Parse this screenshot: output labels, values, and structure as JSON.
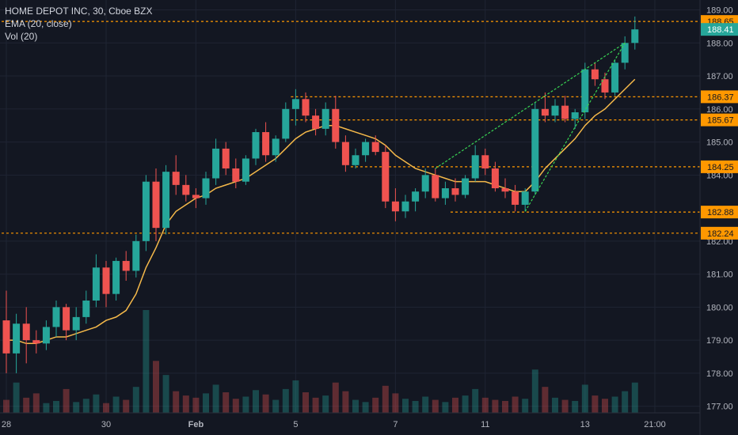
{
  "legend": {
    "title": "HOME DEPOT INC, 30, Cboe BZX",
    "ema": "EMA (20, close)",
    "vol": "Vol (20)"
  },
  "colors": {
    "background": "#131722",
    "grid": "#1f2433",
    "up": "#26a69a",
    "down": "#ef5350",
    "ema": "#f5b94a",
    "level": "#ff9800",
    "trend": "#39d353",
    "current_price_badge": "#26a69a"
  },
  "chart_data": {
    "type": "candlestick",
    "title": "HOME DEPOT INC, 30, Cboe BZX",
    "y_axis_ticks": [
      "189.00",
      "188.00",
      "187.00",
      "186.00",
      "185.00",
      "184.00",
      "182.00",
      "181.00",
      "180.00",
      "179.00",
      "178.00",
      "177.00"
    ],
    "x_axis_ticks": [
      {
        "label": "28",
        "idx": 0
      },
      {
        "label": "30",
        "idx": 10
      },
      {
        "label": "Feb",
        "idx": 19
      },
      {
        "label": "5",
        "idx": 29
      },
      {
        "label": "7",
        "idx": 39
      },
      {
        "label": "11",
        "idx": 48
      },
      {
        "label": "13",
        "idx": 58
      },
      {
        "label": "21:00",
        "idx": 65
      }
    ],
    "ylim": [
      176.8,
      189.3
    ],
    "horizontal_levels": [
      {
        "label": "188.65",
        "value": 188.65,
        "from_idx": 0
      },
      {
        "label": "186.37",
        "value": 186.37,
        "from_idx": 29
      },
      {
        "label": "185.67",
        "value": 185.67,
        "from_idx": 29
      },
      {
        "label": "184.25",
        "value": 184.25,
        "from_idx": 35
      },
      {
        "label": "182.88",
        "value": 182.88,
        "from_idx": 45
      },
      {
        "label": "182.24",
        "value": 182.24,
        "from_idx": 0
      }
    ],
    "current_price": {
      "label": "188.41",
      "value": 188.41
    },
    "trendlines": [
      {
        "from": [
          43,
          184.2
        ],
        "to": [
          62,
          188.0
        ]
      },
      {
        "from": [
          52,
          182.9
        ],
        "to": [
          62,
          188.0
        ]
      }
    ],
    "candles": [
      [
        179.6,
        180.5,
        178.0,
        178.6
      ],
      [
        178.6,
        179.8,
        178.0,
        179.5
      ],
      [
        179.5,
        180.0,
        178.3,
        179.0
      ],
      [
        179.0,
        179.3,
        178.6,
        178.9
      ],
      [
        178.9,
        179.6,
        178.7,
        179.4
      ],
      [
        179.4,
        180.2,
        179.1,
        180.0
      ],
      [
        180.0,
        180.1,
        179.0,
        179.3
      ],
      [
        179.3,
        180.0,
        179.0,
        179.7
      ],
      [
        179.7,
        180.5,
        179.5,
        180.2
      ],
      [
        180.2,
        181.6,
        180.0,
        181.2
      ],
      [
        181.2,
        181.4,
        180.0,
        180.4
      ],
      [
        180.4,
        181.5,
        180.2,
        181.4
      ],
      [
        181.4,
        181.7,
        180.8,
        181.1
      ],
      [
        181.1,
        182.2,
        180.9,
        182.0
      ],
      [
        182.0,
        184.0,
        181.7,
        183.8
      ],
      [
        183.8,
        184.2,
        182.0,
        182.4
      ],
      [
        182.4,
        184.3,
        182.2,
        184.1
      ],
      [
        184.1,
        184.6,
        183.4,
        183.7
      ],
      [
        183.7,
        184.0,
        183.2,
        183.4
      ],
      [
        183.4,
        183.6,
        183.0,
        183.3
      ],
      [
        183.3,
        184.1,
        183.1,
        183.9
      ],
      [
        183.9,
        185.1,
        183.7,
        184.8
      ],
      [
        184.8,
        185.0,
        184.0,
        184.2
      ],
      [
        184.2,
        184.5,
        183.6,
        183.8
      ],
      [
        183.8,
        184.6,
        183.7,
        184.5
      ],
      [
        184.5,
        185.4,
        184.3,
        185.3
      ],
      [
        185.3,
        185.6,
        184.4,
        184.6
      ],
      [
        184.6,
        185.2,
        184.4,
        185.1
      ],
      [
        185.1,
        186.2,
        185.0,
        186.0
      ],
      [
        186.0,
        186.6,
        185.5,
        186.3
      ],
      [
        186.3,
        186.5,
        185.6,
        185.8
      ],
      [
        185.8,
        186.0,
        185.2,
        185.4
      ],
      [
        185.4,
        186.2,
        185.2,
        186.0
      ],
      [
        186.0,
        186.4,
        184.8,
        185.0
      ],
      [
        185.0,
        185.2,
        184.1,
        184.3
      ],
      [
        184.3,
        184.8,
        184.2,
        184.6
      ],
      [
        184.6,
        185.1,
        184.4,
        185.0
      ],
      [
        185.0,
        185.2,
        184.6,
        184.7
      ],
      [
        184.7,
        184.9,
        183.0,
        183.2
      ],
      [
        183.2,
        183.6,
        182.6,
        182.9
      ],
      [
        182.9,
        183.4,
        182.7,
        183.2
      ],
      [
        183.2,
        183.6,
        182.9,
        183.5
      ],
      [
        183.5,
        184.2,
        183.3,
        184.0
      ],
      [
        184.0,
        184.2,
        183.2,
        183.3
      ],
      [
        183.3,
        183.8,
        183.1,
        183.6
      ],
      [
        183.6,
        183.9,
        183.2,
        183.4
      ],
      [
        183.4,
        184.0,
        183.3,
        183.9
      ],
      [
        183.9,
        184.9,
        183.8,
        184.6
      ],
      [
        184.6,
        184.8,
        184.0,
        184.2
      ],
      [
        184.2,
        184.4,
        183.5,
        183.6
      ],
      [
        183.6,
        183.9,
        183.3,
        183.5
      ],
      [
        183.5,
        183.7,
        182.9,
        183.1
      ],
      [
        183.1,
        183.6,
        182.9,
        183.5
      ],
      [
        183.5,
        186.2,
        183.4,
        186.0
      ],
      [
        186.0,
        186.5,
        185.6,
        185.8
      ],
      [
        185.8,
        186.3,
        185.6,
        186.1
      ],
      [
        186.1,
        186.4,
        185.6,
        185.7
      ],
      [
        185.7,
        186.0,
        185.4,
        185.9
      ],
      [
        185.9,
        187.4,
        185.7,
        187.2
      ],
      [
        187.2,
        187.4,
        186.7,
        186.9
      ],
      [
        186.9,
        187.1,
        186.3,
        186.5
      ],
      [
        186.5,
        187.5,
        186.4,
        187.4
      ],
      [
        187.4,
        188.2,
        187.2,
        188.0
      ],
      [
        188.0,
        188.8,
        187.8,
        188.41
      ]
    ],
    "ema": [
      179.0,
      179.0,
      178.9,
      178.9,
      179.0,
      179.1,
      179.1,
      179.2,
      179.3,
      179.4,
      179.6,
      179.7,
      179.9,
      180.4,
      181.2,
      181.8,
      182.5,
      182.9,
      183.1,
      183.3,
      183.4,
      183.6,
      183.7,
      183.8,
      183.9,
      184.1,
      184.3,
      184.5,
      184.8,
      185.1,
      185.3,
      185.4,
      185.5,
      185.5,
      185.4,
      185.3,
      185.2,
      185.1,
      184.9,
      184.6,
      184.4,
      184.2,
      184.1,
      184.0,
      183.9,
      183.8,
      183.8,
      183.8,
      183.8,
      183.7,
      183.6,
      183.5,
      183.5,
      183.8,
      184.2,
      184.5,
      184.8,
      185.1,
      185.5,
      185.8,
      186.0,
      186.3,
      186.6,
      186.9
    ],
    "volume": [
      12,
      28,
      14,
      18,
      9,
      11,
      22,
      10,
      13,
      17,
      9,
      15,
      12,
      24,
      95,
      48,
      35,
      20,
      16,
      14,
      18,
      26,
      19,
      13,
      15,
      21,
      17,
      12,
      22,
      30,
      19,
      14,
      16,
      28,
      20,
      12,
      10,
      14,
      25,
      18,
      13,
      11,
      15,
      12,
      10,
      14,
      16,
      22,
      14,
      12,
      11,
      15,
      13,
      40,
      24,
      14,
      12,
      11,
      26,
      16,
      13,
      15,
      20,
      28
    ]
  }
}
